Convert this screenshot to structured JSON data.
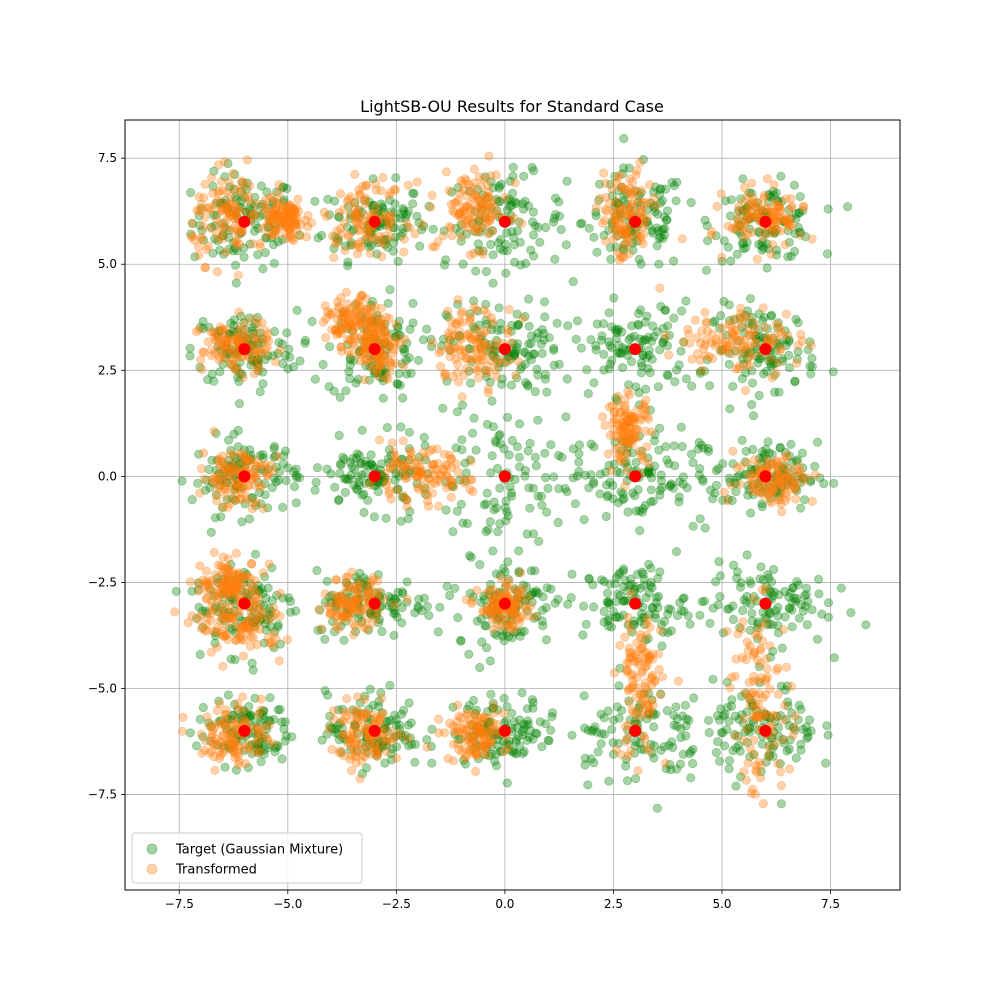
{
  "chart_data": {
    "type": "scatter",
    "title": "LightSB-OU Results for Standard Case",
    "xlabel": "",
    "ylabel": "",
    "xlim": [
      -8.75,
      9.1
    ],
    "ylim": [
      -9.75,
      8.4
    ],
    "xticks": [
      -7.5,
      -5.0,
      -2.5,
      0.0,
      2.5,
      5.0,
      7.5
    ],
    "xtick_labels": [
      "−7.5",
      "−5.0",
      "−2.5",
      "0.0",
      "2.5",
      "5.0",
      "7.5"
    ],
    "yticks": [
      7.5,
      5.0,
      2.5,
      0.0,
      -2.5,
      -5.0,
      -7.5
    ],
    "ytick_labels": [
      "7.5",
      "5.0",
      "2.5",
      "0.0",
      "−2.5",
      "−5.0",
      "−7.5"
    ],
    "grid": true,
    "legend_position": "lower-left",
    "series": [
      {
        "name": "Target (Gaussian Mixture)",
        "color": "#008000",
        "alpha": 0.35,
        "marker": "circle",
        "clusters": [
          {
            "cx": -6,
            "cy": 6,
            "sx": 0.6,
            "sy": 0.55
          },
          {
            "cx": -3,
            "cy": 6,
            "sx": 0.6,
            "sy": 0.45
          },
          {
            "cx": 0,
            "cy": 6,
            "sx": 0.7,
            "sy": 0.55
          },
          {
            "cx": 3,
            "cy": 6,
            "sx": 0.6,
            "sy": 0.6
          },
          {
            "cx": 6,
            "cy": 6,
            "sx": 0.6,
            "sy": 0.45
          },
          {
            "cx": -6,
            "cy": 3,
            "sx": 0.6,
            "sy": 0.45
          },
          {
            "cx": -3,
            "cy": 3,
            "sx": 0.55,
            "sy": 0.6
          },
          {
            "cx": 0,
            "cy": 3,
            "sx": 0.65,
            "sy": 0.55
          },
          {
            "cx": 3,
            "cy": 3,
            "sx": 0.7,
            "sy": 0.55
          },
          {
            "cx": 6,
            "cy": 3,
            "sx": 0.6,
            "sy": 0.5
          },
          {
            "cx": -6,
            "cy": 0,
            "sx": 0.6,
            "sy": 0.45
          },
          {
            "cx": -3,
            "cy": 0,
            "sx": 0.7,
            "sy": 0.4
          },
          {
            "cx": 0,
            "cy": 0,
            "sx": 0.9,
            "sy": 0.9
          },
          {
            "cx": 3,
            "cy": 0,
            "sx": 0.8,
            "sy": 0.55
          },
          {
            "cx": 6,
            "cy": 0,
            "sx": 0.6,
            "sy": 0.4
          },
          {
            "cx": -6,
            "cy": -3,
            "sx": 0.6,
            "sy": 0.55
          },
          {
            "cx": -3,
            "cy": -3,
            "sx": 0.7,
            "sy": 0.4
          },
          {
            "cx": 0,
            "cy": -3,
            "sx": 0.55,
            "sy": 0.5
          },
          {
            "cx": 3,
            "cy": -3,
            "sx": 0.6,
            "sy": 0.45
          },
          {
            "cx": 6,
            "cy": -3,
            "sx": 0.7,
            "sy": 0.5
          },
          {
            "cx": -6,
            "cy": -6,
            "sx": 0.55,
            "sy": 0.4
          },
          {
            "cx": -3,
            "cy": -6,
            "sx": 0.55,
            "sy": 0.45
          },
          {
            "cx": 0,
            "cy": -6,
            "sx": 0.6,
            "sy": 0.4
          },
          {
            "cx": 3,
            "cy": -6,
            "sx": 0.8,
            "sy": 0.6
          },
          {
            "cx": 6,
            "cy": -6,
            "sx": 0.6,
            "sy": 0.55
          }
        ]
      },
      {
        "name": "Transformed",
        "color": "#ff7f0e",
        "alpha": 0.35,
        "marker": "circle",
        "clusters": [
          {
            "cx": -6.3,
            "cy": 6.1,
            "sx": 0.45,
            "sy": 0.5
          },
          {
            "cx": -5.1,
            "cy": 6.05,
            "sx": 0.25,
            "sy": 0.25
          },
          {
            "cx": -3.2,
            "cy": 6.1,
            "sx": 0.5,
            "sy": 0.4
          },
          {
            "cx": -0.7,
            "cy": 6.3,
            "sx": 0.4,
            "sy": 0.45
          },
          {
            "cx": 2.8,
            "cy": 6.1,
            "sx": 0.3,
            "sy": 0.55
          },
          {
            "cx": 6.0,
            "cy": 6.1,
            "sx": 0.45,
            "sy": 0.35
          },
          {
            "cx": -6.2,
            "cy": 3.05,
            "sx": 0.4,
            "sy": 0.3
          },
          {
            "cx": -3.5,
            "cy": 3.6,
            "sx": 0.3,
            "sy": 0.3
          },
          {
            "cx": -2.9,
            "cy": 3.1,
            "sx": 0.25,
            "sy": 0.35
          },
          {
            "cx": -0.7,
            "cy": 3.1,
            "sx": 0.45,
            "sy": 0.45
          },
          {
            "cx": 5.4,
            "cy": 3.2,
            "sx": 0.7,
            "sy": 0.4
          },
          {
            "cx": -6.2,
            "cy": 0.0,
            "sx": 0.4,
            "sy": 0.35
          },
          {
            "cx": -2.0,
            "cy": 0.0,
            "sx": 0.6,
            "sy": 0.3
          },
          {
            "cx": 2.85,
            "cy": 1.1,
            "sx": 0.25,
            "sy": 0.4
          },
          {
            "cx": 6.2,
            "cy": -0.05,
            "sx": 0.45,
            "sy": 0.3
          },
          {
            "cx": -6.3,
            "cy": -2.5,
            "sx": 0.35,
            "sy": 0.25
          },
          {
            "cx": -6.1,
            "cy": -3.5,
            "sx": 0.5,
            "sy": 0.35
          },
          {
            "cx": -3.5,
            "cy": -3.0,
            "sx": 0.35,
            "sy": 0.3
          },
          {
            "cx": 0.0,
            "cy": -3.1,
            "sx": 0.3,
            "sy": 0.25
          },
          {
            "cx": 3.1,
            "cy": -4.9,
            "sx": 0.25,
            "sy": 0.9
          },
          {
            "cx": 5.9,
            "cy": -5.3,
            "sx": 0.35,
            "sy": 1.1
          },
          {
            "cx": -6.2,
            "cy": -6.1,
            "sx": 0.4,
            "sy": 0.35
          },
          {
            "cx": -3.2,
            "cy": -6.1,
            "sx": 0.4,
            "sy": 0.35
          },
          {
            "cx": -0.7,
            "cy": -6.1,
            "sx": 0.35,
            "sy": 0.3
          }
        ]
      },
      {
        "name": "",
        "color": "#ff0000",
        "alpha": 1.0,
        "marker": "circle",
        "points": [
          [
            -6,
            6
          ],
          [
            -3,
            6
          ],
          [
            0,
            6
          ],
          [
            3,
            6
          ],
          [
            6,
            6
          ],
          [
            -6,
            3
          ],
          [
            -3,
            3
          ],
          [
            0,
            3
          ],
          [
            3,
            3
          ],
          [
            6,
            3
          ],
          [
            -6,
            0
          ],
          [
            -3,
            0
          ],
          [
            0,
            0
          ],
          [
            3,
            0
          ],
          [
            6,
            0
          ],
          [
            -6,
            -3
          ],
          [
            -3,
            -3
          ],
          [
            0,
            -3
          ],
          [
            3,
            -3
          ],
          [
            6,
            -3
          ],
          [
            -6,
            -6
          ],
          [
            -3,
            -6
          ],
          [
            0,
            -6
          ],
          [
            3,
            -6
          ],
          [
            6,
            -6
          ]
        ]
      }
    ],
    "legend": [
      {
        "label": "Target (Gaussian Mixture)",
        "color": "#008000"
      },
      {
        "label": "Transformed",
        "color": "#ff7f0e"
      }
    ]
  }
}
